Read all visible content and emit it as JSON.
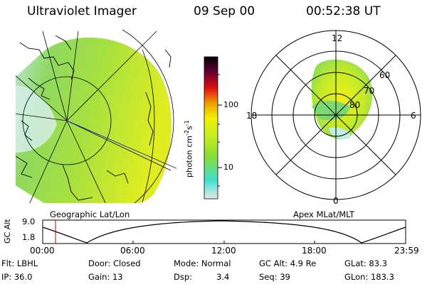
{
  "header": {
    "instrument": "Ultraviolet Imager",
    "date": "09 Sep 00",
    "time": "00:52:38 UT"
  },
  "left_panel": {
    "label": "Geographic Lat/Lon"
  },
  "right_panel": {
    "label": "Apex MLat/MLT",
    "mlt_labels": [
      "12",
      "18",
      "6",
      "0"
    ],
    "mlat_labels": [
      "60",
      "70",
      "80"
    ]
  },
  "colorbar": {
    "unit_label": "photon cm",
    "unit_exp1": "-2",
    "unit_mid": "s",
    "unit_exp2": "-1",
    "ticks": [
      "100",
      "10"
    ],
    "scale": "log",
    "colors": [
      "#e8e8e8",
      "#40e0d0",
      "#88dd33",
      "#c8ee22",
      "#f0f000",
      "#f0a000",
      "#e01010",
      "#600030",
      "#000000"
    ]
  },
  "timeline": {
    "y_label": "GC Alt",
    "y_ticks": [
      "9.0",
      "1.8"
    ],
    "x_ticks": [
      "00:00",
      "06:00",
      "12:00",
      "18:00",
      "23:59"
    ],
    "current_marker_color": "#cc0000"
  },
  "info": {
    "flt": "Flt: LBHL",
    "ip": "IP: 36.0",
    "door": "Door: Closed",
    "gain": "Gain: 13",
    "mode": "Mode: Normal",
    "dsp_label": "Dsp:",
    "dsp_value": "3.4",
    "gc_alt": "GC Alt: 4.9 Re",
    "seq": "Seq: 39",
    "glat": "GLat:  83.3",
    "glon": "GLon: 183.3"
  }
}
